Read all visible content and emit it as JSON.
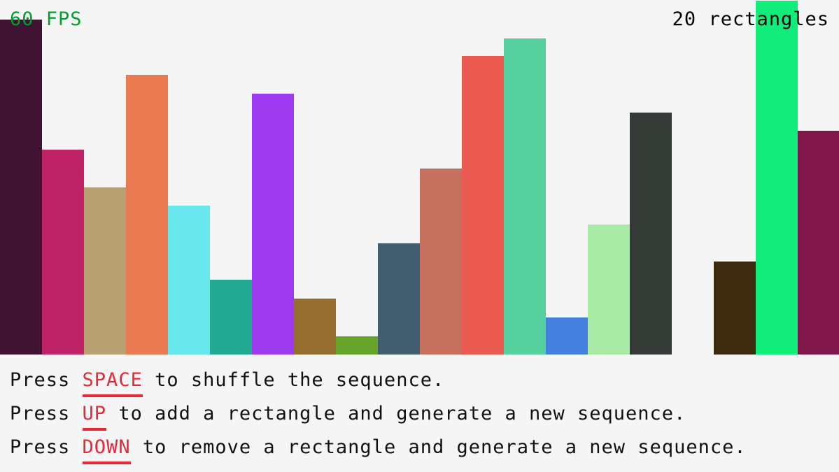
{
  "hud": {
    "fps": "60 FPS",
    "count": "20 rectangles",
    "fps_color": "#009e2f"
  },
  "instructions": [
    {
      "pre": "Press ",
      "key": "SPACE",
      "post": " to shuffle the sequence."
    },
    {
      "pre": "Press ",
      "key": "UP",
      "post": " to add a rectangle and generate a new sequence."
    },
    {
      "pre": "Press ",
      "key": "DOWN",
      "post": " to remove a rectangle and generate a new sequence."
    }
  ],
  "key_color": "#e62937",
  "chart_data": {
    "type": "bar",
    "value_unit": "percent of bar area height",
    "values": [
      94.5,
      57.8,
      47.1,
      78.9,
      42.0,
      21.1,
      73.6,
      15.8,
      5.1,
      31.4,
      52.5,
      84.2,
      89.2,
      10.5,
      36.7,
      68.2,
      0,
      26.2,
      99.8,
      63.1
    ],
    "colors": [
      "#3f1331",
      "#be2366",
      "#b8a073",
      "#ea7a52",
      "#69e7ec",
      "#22aa92",
      "#9e3bf0",
      "#946d2f",
      "#67a42c",
      "#425d6f",
      "#c6705f",
      "#ea5a50",
      "#56d09f",
      "#4680df",
      "#a9eaa7",
      "#343b37",
      "#f5f5f5",
      "#3d2b10",
      "#12ec7a",
      "#81164a"
    ]
  }
}
